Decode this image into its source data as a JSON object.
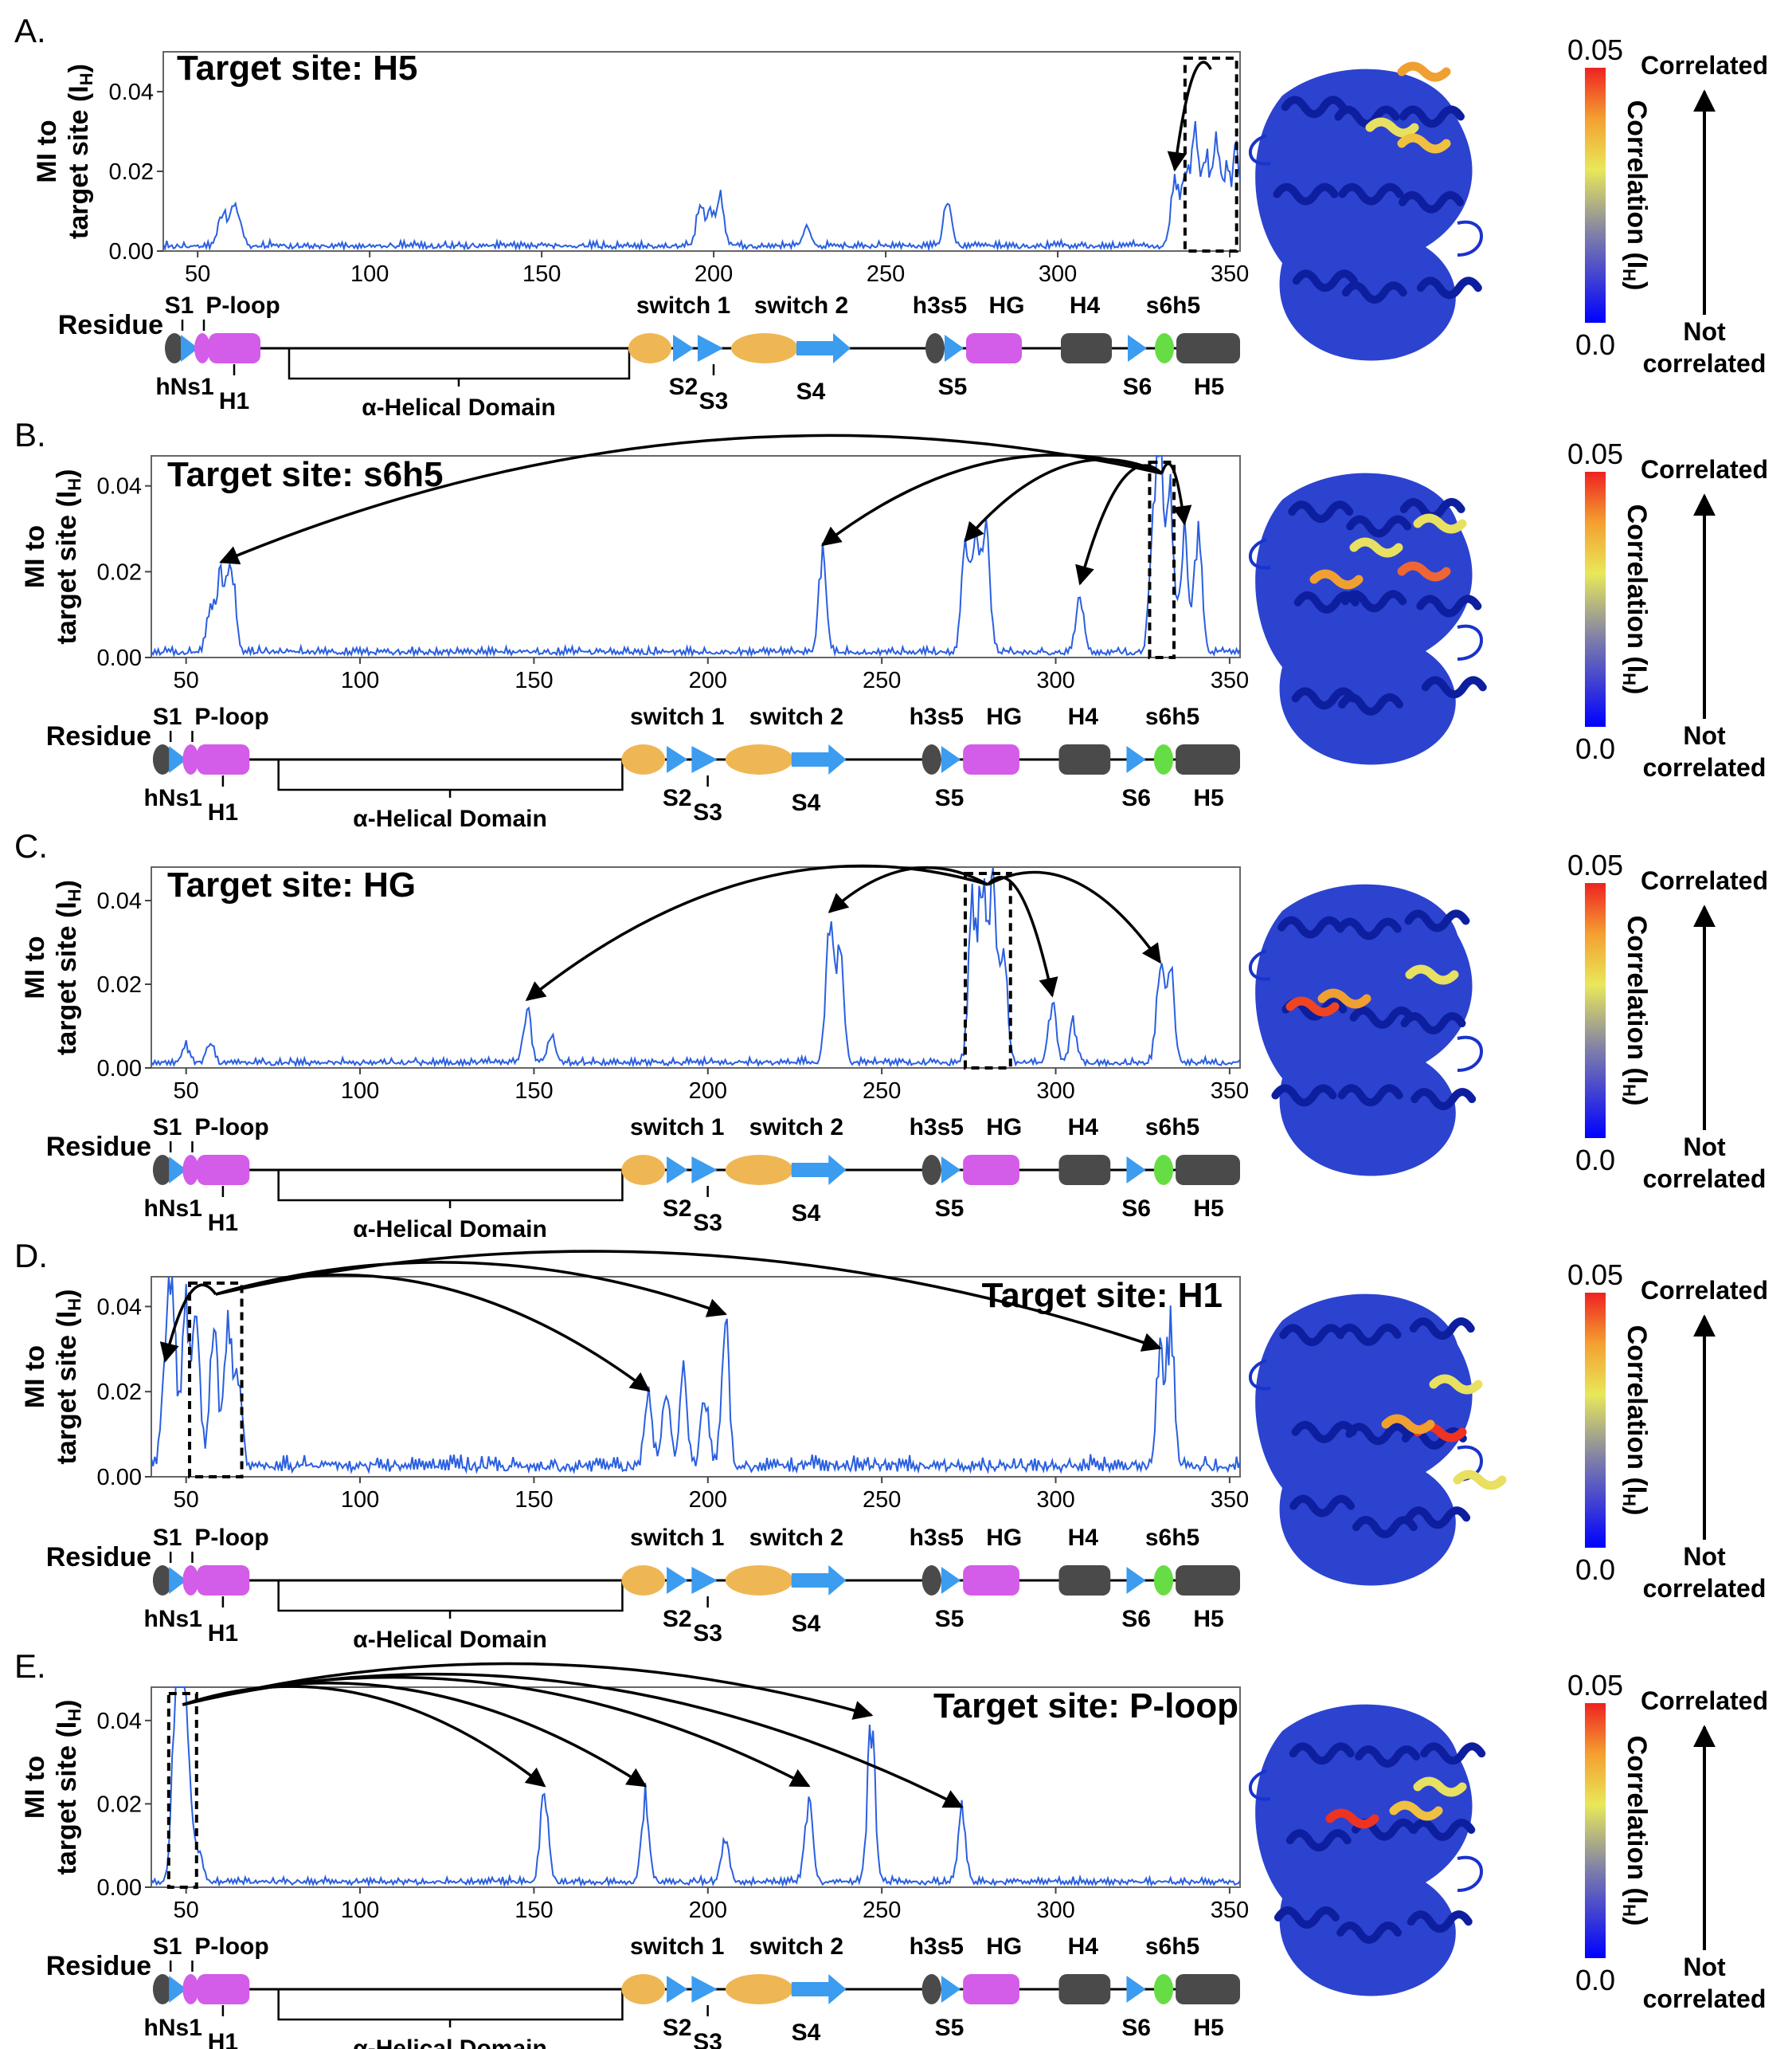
{
  "ylabel_line1": "MI to",
  "ylabel_line2": "target site (I",
  "ylabel_sub": "H",
  "ylabel_close": ")",
  "y_ticks": [
    "0.00",
    "0.02",
    "0.04"
  ],
  "x_ticks": [
    "50",
    "100",
    "150",
    "200",
    "250",
    "300",
    "350"
  ],
  "domain_map": {
    "row_label": "Residue",
    "labels": {
      "S1": "S1",
      "P-loop": "P-loop",
      "hNs1": "hNs1",
      "H1": "H1",
      "alpha": "α-Helical Domain",
      "switch1": "switch 1",
      "switch2": "switch 2",
      "S2": "S2",
      "S3": "S3",
      "S4": "S4",
      "h3s5": "h3s5",
      "HG": "HG",
      "S5": "S5",
      "H4": "H4",
      "s6h5": "s6h5",
      "S6": "S6",
      "H5": "H5"
    }
  },
  "colorbar": {
    "max": "0.05",
    "min": "0.0",
    "label": "Correlation (I",
    "label_sub": "H",
    "label_close": ")",
    "top_text": "Correlated",
    "bottom_text_1": "Not",
    "bottom_text_2": "correlated"
  },
  "colors": {
    "line": "#2a5fe0",
    "strand": "#3b9cf0",
    "loop_gray": "#4a4a4a",
    "pink": "#d35ce8",
    "orange": "#efb654",
    "green": "#66dd44",
    "cartoon": "#1a33cc"
  },
  "chart_data": [
    {
      "panel": "A.",
      "type": "line",
      "title": "Target site: H5",
      "xlim": [
        40,
        353
      ],
      "ylim": [
        0,
        0.05
      ],
      "grid": false,
      "highlight": [
        337,
        352
      ],
      "peaks": [
        [
          57,
          0.008
        ],
        [
          60,
          0.01
        ],
        [
          62,
          0.006
        ],
        [
          196,
          0.01
        ],
        [
          199,
          0.009
        ],
        [
          202,
          0.013
        ],
        [
          227,
          0.006
        ],
        [
          268,
          0.013
        ],
        [
          334,
          0.018
        ],
        [
          337,
          0.02
        ],
        [
          340,
          0.031
        ],
        [
          343,
          0.023
        ],
        [
          346,
          0.028
        ],
        [
          349,
          0.022
        ],
        [
          352,
          0.024
        ]
      ],
      "baseline": 0.001
    },
    {
      "panel": "B.",
      "type": "line",
      "title": "Target site: s6h5",
      "xlim": [
        40,
        353
      ],
      "ylim": [
        0,
        0.047
      ],
      "grid": false,
      "highlight": [
        327,
        334
      ],
      "peaks": [
        [
          57,
          0.012
        ],
        [
          60,
          0.02
        ],
        [
          63,
          0.023
        ],
        [
          233,
          0.024
        ],
        [
          274,
          0.025
        ],
        [
          277,
          0.031
        ],
        [
          280,
          0.028
        ],
        [
          307,
          0.015
        ],
        [
          328,
          0.029
        ],
        [
          330,
          0.045
        ],
        [
          333,
          0.036
        ],
        [
          337,
          0.029
        ],
        [
          341,
          0.031
        ]
      ],
      "baseline": 0.001
    },
    {
      "panel": "C.",
      "type": "line",
      "title": "Target site: HG",
      "xlim": [
        40,
        353
      ],
      "ylim": [
        0,
        0.048
      ],
      "grid": false,
      "highlight": [
        274,
        287
      ],
      "peaks": [
        [
          50,
          0.004
        ],
        [
          57,
          0.005
        ],
        [
          148,
          0.014
        ],
        [
          155,
          0.008
        ],
        [
          235,
          0.035
        ],
        [
          238,
          0.027
        ],
        [
          276,
          0.038
        ],
        [
          279,
          0.049
        ],
        [
          282,
          0.041
        ],
        [
          285,
          0.028
        ],
        [
          299,
          0.015
        ],
        [
          305,
          0.01
        ],
        [
          330,
          0.023
        ],
        [
          333,
          0.025
        ]
      ],
      "baseline": 0.001
    },
    {
      "panel": "D.",
      "type": "line",
      "title": "Target site: H1",
      "xlim": [
        40,
        353
      ],
      "ylim": [
        0,
        0.047
      ],
      "grid": false,
      "highlight": [
        51,
        66
      ],
      "peaks": [
        [
          44,
          0.025
        ],
        [
          46,
          0.044
        ],
        [
          50,
          0.04
        ],
        [
          53,
          0.036
        ],
        [
          58,
          0.034
        ],
        [
          62,
          0.033
        ],
        [
          65,
          0.024
        ],
        [
          183,
          0.018
        ],
        [
          188,
          0.02
        ],
        [
          193,
          0.024
        ],
        [
          199,
          0.016
        ],
        [
          205,
          0.036
        ],
        [
          330,
          0.028
        ],
        [
          333,
          0.033
        ]
      ],
      "baseline": 0.002
    },
    {
      "panel": "E.",
      "type": "line",
      "title": "Target site: P-loop",
      "xlim": [
        40,
        353
      ],
      "ylim": [
        0,
        0.048
      ],
      "grid": false,
      "highlight": [
        45,
        53
      ],
      "peaks": [
        [
          47,
          0.048
        ],
        [
          49,
          0.043
        ],
        [
          51,
          0.022
        ],
        [
          54,
          0.007
        ],
        [
          153,
          0.022
        ],
        [
          182,
          0.022
        ],
        [
          205,
          0.012
        ],
        [
          229,
          0.022
        ],
        [
          247,
          0.039
        ],
        [
          273,
          0.017
        ]
      ],
      "baseline": 0.001
    }
  ]
}
